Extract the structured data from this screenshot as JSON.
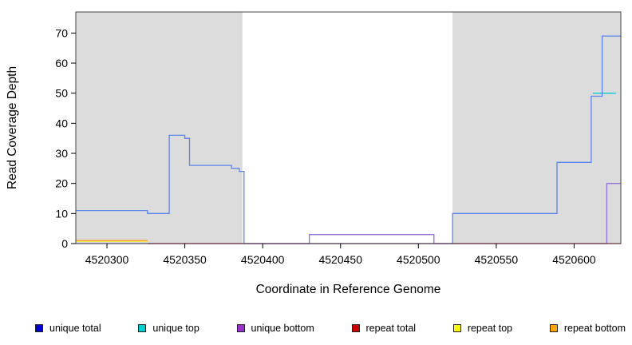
{
  "chart_data": {
    "type": "line",
    "title": "",
    "xlabel": "Coordinate in Reference Genome",
    "ylabel": "Read Coverage Depth",
    "xlim": [
      4520280,
      4520630
    ],
    "ylim": [
      0,
      77
    ],
    "x_ticks": [
      4520300,
      4520350,
      4520400,
      4520450,
      4520500,
      4520550,
      4520600
    ],
    "y_ticks": [
      0,
      10,
      20,
      30,
      40,
      50,
      60,
      70
    ],
    "grid": "off",
    "shaded_regions": [
      {
        "x0": 4520280,
        "x1": 4520387,
        "color": "#dcdcdc"
      },
      {
        "x0": 4520522,
        "x1": 4520630,
        "color": "#dcdcdc"
      }
    ],
    "series": [
      {
        "id": "unique-bottom",
        "name": "unique bottom",
        "color": "#9370db",
        "points": [
          [
            4520280,
            0
          ],
          [
            4520430,
            0
          ],
          [
            4520430,
            3
          ],
          [
            4520510,
            3
          ],
          [
            4520510,
            0
          ],
          [
            4520621,
            0
          ],
          [
            4520621,
            20
          ],
          [
            4520630,
            20
          ]
        ]
      },
      {
        "id": "repeat-top",
        "name": "repeat top",
        "color": "#ffee00",
        "points": [
          [
            4520280,
            0.8
          ],
          [
            4520326,
            0.8
          ]
        ]
      },
      {
        "id": "repeat-bottom",
        "name": "repeat bottom",
        "color": "#ffa040",
        "points": [
          [
            4520280,
            1
          ],
          [
            4520326,
            1
          ]
        ]
      },
      {
        "id": "repeat-total",
        "name": "repeat total",
        "color": "#e00000",
        "points": [
          [
            4520326,
            0
          ],
          [
            4520630,
            0
          ]
        ]
      },
      {
        "id": "unique-top",
        "name": "unique top",
        "color": "#00ced1",
        "points": [
          [
            4520612,
            50
          ],
          [
            4520627,
            50
          ]
        ]
      },
      {
        "id": "unique-total",
        "name": "unique total",
        "color": "#5b84ec",
        "points": [
          [
            4520280,
            11
          ],
          [
            4520326,
            11
          ],
          [
            4520326,
            10
          ],
          [
            4520340,
            10
          ],
          [
            4520340,
            36
          ],
          [
            4520350,
            36
          ],
          [
            4520350,
            35
          ],
          [
            4520353,
            35
          ],
          [
            4520353,
            26
          ],
          [
            4520380,
            26
          ],
          [
            4520380,
            25
          ],
          [
            4520385,
            25
          ],
          [
            4520385,
            24
          ],
          [
            4520388,
            24
          ],
          [
            4520388,
            0
          ],
          [
            4520522,
            0
          ],
          [
            4520522,
            10
          ],
          [
            4520589,
            10
          ],
          [
            4520589,
            27
          ],
          [
            4520611,
            27
          ],
          [
            4520611,
            49
          ],
          [
            4520618,
            49
          ],
          [
            4520618,
            69
          ],
          [
            4520630,
            69
          ]
        ]
      }
    ],
    "legend": {
      "position": "bottom",
      "items": [
        {
          "label": "unique total",
          "color": "#0000cd"
        },
        {
          "label": "unique top",
          "color": "#00cdcd"
        },
        {
          "label": "unique bottom",
          "color": "#9932cc"
        },
        {
          "label": "repeat total",
          "color": "#cd0000"
        },
        {
          "label": "repeat top",
          "color": "#ffff00"
        },
        {
          "label": "repeat bottom",
          "color": "#ffa500"
        }
      ]
    }
  }
}
